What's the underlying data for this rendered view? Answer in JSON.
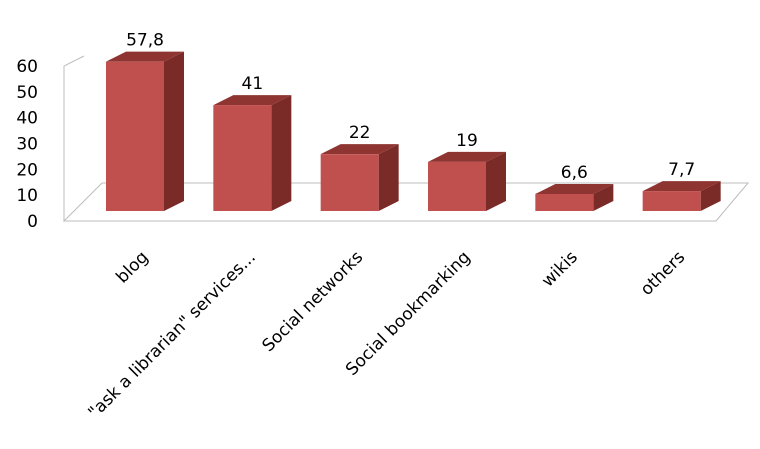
{
  "chart_data": {
    "type": "bar",
    "title": "",
    "xlabel": "",
    "ylabel": "",
    "ylim": [
      0,
      60
    ],
    "yticks": [
      0,
      10,
      20,
      30,
      40,
      50,
      60
    ],
    "grid": false,
    "legend": "none",
    "style": "3d-column",
    "categories": [
      "blog",
      "\"ask a librarian\" services...",
      "Social networks",
      "Social bookmarking",
      "wikis",
      "others"
    ],
    "values": [
      57.8,
      41,
      22,
      19,
      6.6,
      7.7
    ],
    "data_labels": [
      "57,8",
      "41",
      "22",
      "19",
      "6,6",
      "7,7"
    ],
    "colors": {
      "front": "#c0504d",
      "side": "#7a2a27",
      "top": "#8e3431"
    }
  }
}
